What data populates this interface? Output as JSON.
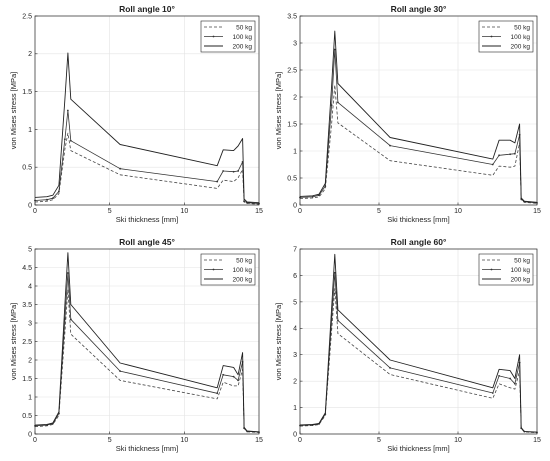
{
  "chart_data": [
    {
      "type": "line",
      "title": "Roll angle 10°",
      "xlabel": "Ski thickness [mm]",
      "ylabel": "von Mises stress [MPa]",
      "xlim": [
        0,
        15
      ],
      "ylim": [
        0,
        2.5
      ],
      "xticks": [
        0,
        5,
        10,
        15
      ],
      "yticks": [
        0,
        0.5,
        1,
        1.5,
        2,
        2.5
      ],
      "grid": true,
      "legend": "top-right",
      "series": [
        {
          "name": "50 kg",
          "style": "dashed",
          "x": [
            0,
            0.8,
            1.2,
            1.6,
            2.0,
            2.2,
            2.4,
            5.7,
            12.2,
            12.6,
            13.3,
            13.6,
            13.9,
            14.0,
            14.2,
            15
          ],
          "y": [
            0.04,
            0.05,
            0.07,
            0.15,
            0.74,
            0.95,
            0.72,
            0.4,
            0.22,
            0.33,
            0.31,
            0.36,
            0.47,
            0.04,
            0.02,
            0.01
          ]
        },
        {
          "name": "100 kg",
          "style": "solid-dot",
          "x": [
            0,
            0.8,
            1.2,
            1.6,
            2.0,
            2.2,
            2.4,
            5.7,
            12.2,
            12.6,
            13.3,
            13.6,
            13.9,
            14.0,
            14.2,
            15
          ],
          "y": [
            0.06,
            0.07,
            0.09,
            0.18,
            0.87,
            1.25,
            0.85,
            0.48,
            0.31,
            0.45,
            0.44,
            0.45,
            0.57,
            0.05,
            0.03,
            0.02
          ]
        },
        {
          "name": "200 kg",
          "style": "solid",
          "x": [
            0,
            0.8,
            1.2,
            1.6,
            2.0,
            2.2,
            2.4,
            5.7,
            12.2,
            12.6,
            13.3,
            13.6,
            13.9,
            14.0,
            14.2,
            15
          ],
          "y": [
            0.1,
            0.11,
            0.13,
            0.26,
            1.4,
            2.01,
            1.4,
            0.8,
            0.52,
            0.73,
            0.72,
            0.78,
            0.88,
            0.08,
            0.04,
            0.03
          ]
        }
      ]
    },
    {
      "type": "line",
      "title": "Roll angle 30°",
      "xlabel": "Ski thickness [mm]",
      "ylabel": "von Mises stress [MPa]",
      "xlim": [
        0,
        15
      ],
      "ylim": [
        0,
        3.5
      ],
      "xticks": [
        0,
        5,
        10,
        15
      ],
      "yticks": [
        0,
        0.5,
        1,
        1.5,
        2,
        2.5,
        3,
        3.5
      ],
      "grid": true,
      "legend": "top-right",
      "series": [
        {
          "name": "50 kg",
          "style": "dashed",
          "x": [
            0,
            0.8,
            1.2,
            1.6,
            2.0,
            2.2,
            2.4,
            5.7,
            12.2,
            12.6,
            13.3,
            13.6,
            13.9,
            14.0,
            14.2,
            15
          ],
          "y": [
            0.12,
            0.13,
            0.15,
            0.3,
            1.5,
            2.22,
            1.52,
            0.82,
            0.55,
            0.72,
            0.7,
            0.72,
            1.15,
            0.09,
            0.05,
            0.03
          ]
        },
        {
          "name": "100 kg",
          "style": "solid-dot",
          "x": [
            0,
            0.8,
            1.2,
            1.6,
            2.0,
            2.2,
            2.4,
            5.7,
            12.2,
            12.6,
            13.3,
            13.6,
            13.9,
            14.0,
            14.2,
            15
          ],
          "y": [
            0.14,
            0.15,
            0.18,
            0.35,
            1.85,
            2.88,
            1.9,
            1.1,
            0.75,
            0.92,
            0.94,
            0.95,
            1.3,
            0.11,
            0.06,
            0.04
          ]
        },
        {
          "name": "200 kg",
          "style": "solid",
          "x": [
            0,
            0.8,
            1.2,
            1.6,
            2.0,
            2.2,
            2.4,
            5.7,
            12.2,
            12.6,
            13.3,
            13.6,
            13.9,
            14.0,
            14.2,
            15
          ],
          "y": [
            0.16,
            0.17,
            0.2,
            0.4,
            2.2,
            3.22,
            2.25,
            1.25,
            0.85,
            1.2,
            1.2,
            1.15,
            1.5,
            0.13,
            0.07,
            0.05
          ]
        }
      ]
    },
    {
      "type": "line",
      "title": "Roll angle 45°",
      "xlabel": "Ski thickness [mm]",
      "ylabel": "von Mises stress [MPa]",
      "xlim": [
        0,
        15
      ],
      "ylim": [
        0,
        5
      ],
      "xticks": [
        0,
        5,
        10,
        15
      ],
      "yticks": [
        0,
        0.5,
        1,
        1.5,
        2,
        2.5,
        3,
        3.5,
        4,
        4.5,
        5
      ],
      "grid": true,
      "legend": "top-right",
      "series": [
        {
          "name": "50 kg",
          "style": "dashed",
          "x": [
            0,
            0.8,
            1.2,
            1.6,
            2.0,
            2.2,
            2.4,
            5.7,
            12.2,
            12.6,
            13.3,
            13.6,
            13.9,
            14.0,
            14.2,
            15
          ],
          "y": [
            0.2,
            0.22,
            0.26,
            0.5,
            2.75,
            3.9,
            2.7,
            1.45,
            0.95,
            1.4,
            1.3,
            1.3,
            1.75,
            0.15,
            0.06,
            0.04
          ]
        },
        {
          "name": "100 kg",
          "style": "solid-dot",
          "x": [
            0,
            0.8,
            1.2,
            1.6,
            2.0,
            2.2,
            2.4,
            5.7,
            12.2,
            12.6,
            13.3,
            13.6,
            13.9,
            14.0,
            14.2,
            15
          ],
          "y": [
            0.22,
            0.24,
            0.28,
            0.55,
            3.1,
            4.35,
            3.1,
            1.7,
            1.1,
            1.6,
            1.55,
            1.45,
            1.95,
            0.16,
            0.07,
            0.05
          ]
        },
        {
          "name": "200 kg",
          "style": "solid",
          "x": [
            0,
            0.8,
            1.2,
            1.6,
            2.0,
            2.2,
            2.4,
            5.7,
            12.2,
            12.6,
            13.3,
            13.6,
            13.9,
            14.0,
            14.2,
            15
          ],
          "y": [
            0.24,
            0.26,
            0.3,
            0.6,
            3.5,
            4.9,
            3.5,
            1.92,
            1.25,
            1.85,
            1.8,
            1.6,
            2.2,
            0.18,
            0.08,
            0.06
          ]
        }
      ]
    },
    {
      "type": "line",
      "title": "Roll angle 60°",
      "xlabel": "Ski thickness [mm]",
      "ylabel": "von Mises stress [MPa]",
      "xlim": [
        0,
        15
      ],
      "ylim": [
        0,
        7
      ],
      "xticks": [
        0,
        5,
        10,
        15
      ],
      "yticks": [
        0,
        1,
        2,
        3,
        4,
        5,
        6,
        7
      ],
      "grid": true,
      "legend": "top-right",
      "series": [
        {
          "name": "50 kg",
          "style": "dashed",
          "x": [
            0,
            0.8,
            1.2,
            1.6,
            2.0,
            2.2,
            2.4,
            5.7,
            12.2,
            12.6,
            13.3,
            13.6,
            13.9,
            14.0,
            14.2,
            15
          ],
          "y": [
            0.3,
            0.32,
            0.36,
            0.7,
            3.9,
            5.5,
            3.8,
            2.25,
            1.35,
            1.9,
            1.75,
            1.7,
            2.4,
            0.2,
            0.08,
            0.05
          ]
        },
        {
          "name": "100 kg",
          "style": "solid-dot",
          "x": [
            0,
            0.8,
            1.2,
            1.6,
            2.0,
            2.2,
            2.4,
            5.7,
            12.2,
            12.6,
            13.3,
            13.6,
            13.9,
            14.0,
            14.2,
            15
          ],
          "y": [
            0.32,
            0.34,
            0.38,
            0.75,
            4.3,
            6.1,
            4.3,
            2.5,
            1.55,
            2.2,
            2.1,
            1.9,
            2.7,
            0.22,
            0.09,
            0.06
          ]
        },
        {
          "name": "200 kg",
          "style": "solid",
          "x": [
            0,
            0.8,
            1.2,
            1.6,
            2.0,
            2.2,
            2.4,
            5.7,
            12.2,
            12.6,
            13.3,
            13.6,
            13.9,
            14.0,
            14.2,
            15
          ],
          "y": [
            0.34,
            0.36,
            0.4,
            0.8,
            4.75,
            6.8,
            4.7,
            2.8,
            1.75,
            2.45,
            2.4,
            2.1,
            3.0,
            0.24,
            0.1,
            0.07
          ]
        }
      ]
    }
  ]
}
